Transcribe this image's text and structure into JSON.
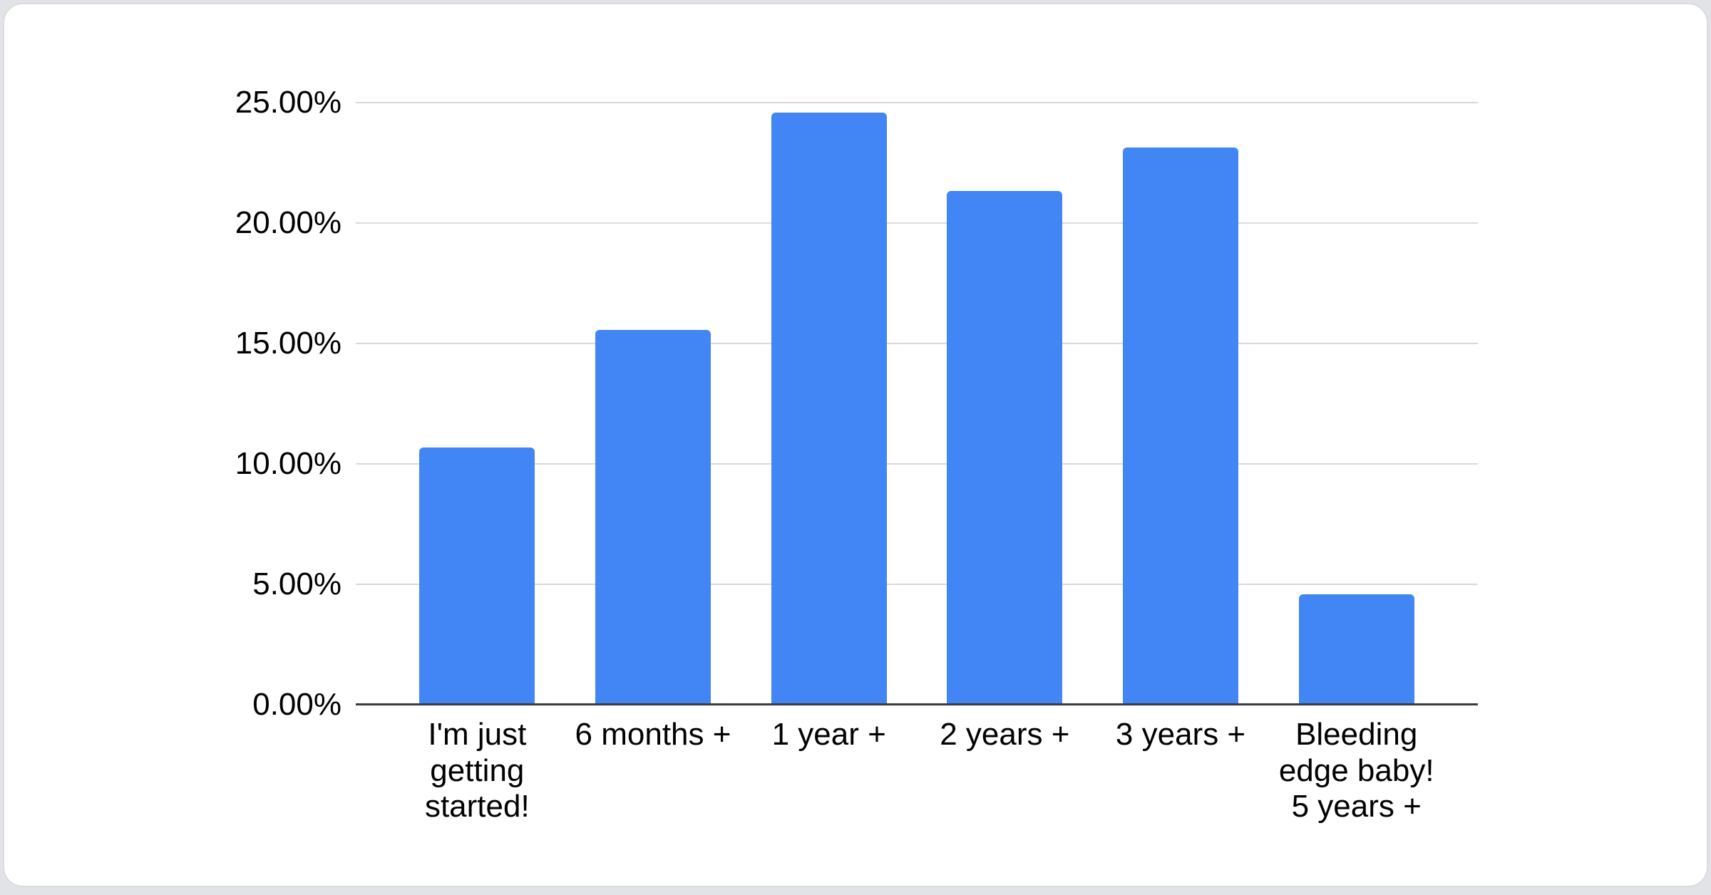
{
  "chart_data": {
    "type": "bar",
    "categories": [
      "I'm just getting started!",
      "6 months +",
      "1 year +",
      "2 years +",
      "3 years +",
      "Bleeding edge baby! 5 years +"
    ],
    "values": [
      10.68,
      15.56,
      24.59,
      21.33,
      23.14,
      4.59
    ],
    "yticks": [
      "25.00%",
      "20.00%",
      "15.00%",
      "10.00%",
      "5.00%",
      "0.00%"
    ],
    "ylim": [
      0,
      25
    ],
    "ytick_step": 5,
    "xlabel": "",
    "ylabel": "",
    "grid": true,
    "legend": "none"
  },
  "colors": {
    "bar": "#4285F4",
    "gridline": "#D9D9D9",
    "axis_line": "#3C3C3C",
    "tick_text": "#000000",
    "card_background": "#FFFFFF",
    "card_border": "#D9DBDE",
    "page_background": "#E1E3E6"
  }
}
